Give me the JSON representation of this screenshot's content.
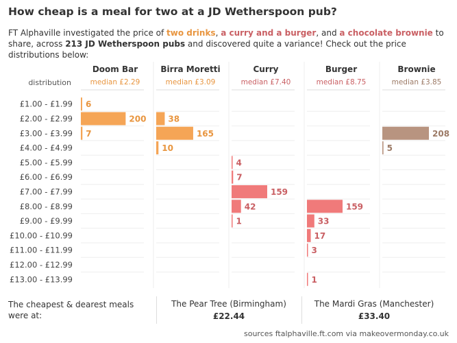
{
  "title": "How cheap is a meal for two at a JD Wetherspoon pub?",
  "intro": {
    "p1": "FT Alphaville investigated the price of ",
    "h1": "two drinks",
    "p2": ", ",
    "h2": "a curry and a burger",
    "p3": ", and ",
    "h3": "a chocolate brownie",
    "p4": " to share, across ",
    "h4": "213 JD Wetherspoon pubs",
    "p5": " and discovered quite a variance! Check out the price distributions below:"
  },
  "chart_data": {
    "type": "bar",
    "row_header": "distribution",
    "categories": [
      "£1.00 - £1.99",
      "£2.00 - £2.99",
      "£3.00 - £3.99",
      "£4.00 - £4.99",
      "£5.00 - £5.99",
      "£6.00 - £6.99",
      "£7.00 - £7.99",
      "£8.00 - £8.99",
      "£9.00 - £9.99",
      "£10.00 - £10.99",
      "£11.00 - £11.99",
      "£12.00 - £12.99",
      "£13.00 - £13.99"
    ],
    "max_value": 208,
    "series": [
      {
        "name": "Doom Bar",
        "median": "median £2.29",
        "color": "#f5a556",
        "text_color": "#e8953f",
        "values": [
          6,
          200,
          7,
          null,
          null,
          null,
          null,
          null,
          null,
          null,
          null,
          null,
          null
        ]
      },
      {
        "name": "Birra Moretti",
        "median": "median £3.09",
        "color": "#f5a556",
        "text_color": "#e8953f",
        "values": [
          null,
          38,
          165,
          10,
          null,
          null,
          null,
          null,
          null,
          null,
          null,
          null,
          null
        ]
      },
      {
        "name": "Curry",
        "median": "median £7.40",
        "color": "#f07a7a",
        "text_color": "#c95f63",
        "values": [
          null,
          null,
          null,
          null,
          4,
          7,
          159,
          42,
          1,
          null,
          null,
          null,
          null
        ]
      },
      {
        "name": "Burger",
        "median": "median £8.75",
        "color": "#f07a7a",
        "text_color": "#c95f63",
        "values": [
          null,
          null,
          null,
          null,
          null,
          null,
          null,
          159,
          33,
          17,
          3,
          null,
          1
        ]
      },
      {
        "name": "Brownie",
        "median": "median £3.85",
        "color": "#b89480",
        "text_color": "#9c7a66",
        "values": [
          null,
          null,
          208,
          5,
          null,
          null,
          null,
          null,
          null,
          null,
          null,
          null,
          null
        ]
      }
    ]
  },
  "footer": {
    "label": "The cheapest & dearest meals were at:",
    "cheapest": {
      "pub": "The Pear Tree (Birmingham)",
      "price": "£22.44"
    },
    "dearest": {
      "pub": "The Mardi Gras (Manchester)",
      "price": "£33.40"
    }
  },
  "sources": "sources ftalphaville.ft.com via makeovermonday.co.uk"
}
